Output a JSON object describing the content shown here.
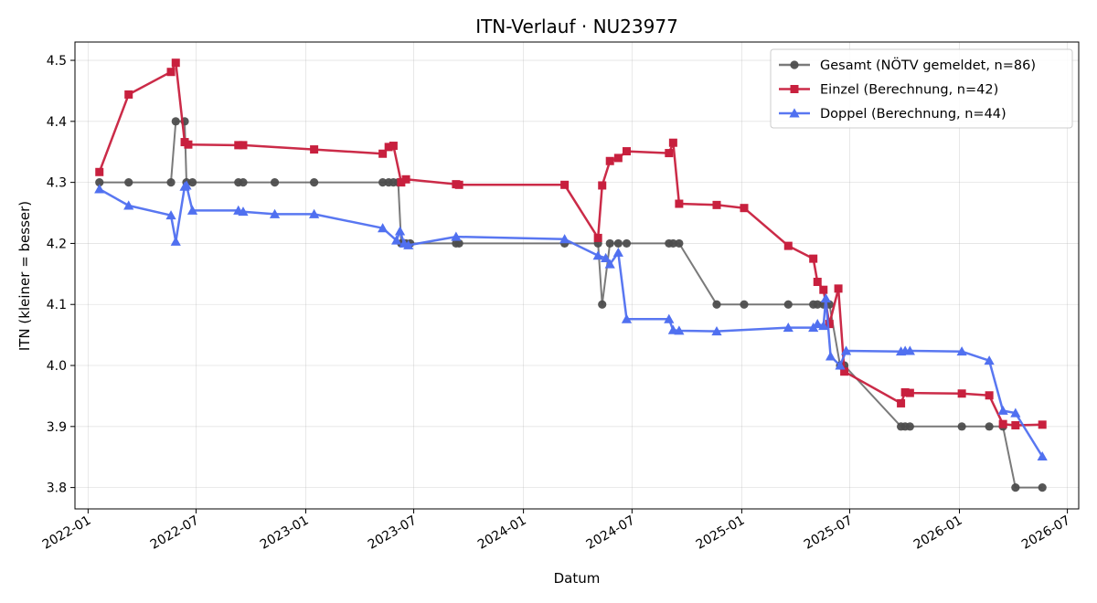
{
  "chart_data": {
    "type": "line",
    "title": "ITN-Verlauf · NU23977",
    "xlabel": "Datum",
    "ylabel": "ITN  (kleiner = besser)",
    "xlim": [
      "2021-12-10",
      "2026-07-20"
    ],
    "ylim": [
      3.765,
      4.53
    ],
    "grid": true,
    "legend_position": "top-right",
    "x_ticks": [
      "2022-01",
      "2022-07",
      "2023-01",
      "2023-07",
      "2024-01",
      "2024-07",
      "2025-01",
      "2025-07",
      "2026-01",
      "2026-07"
    ],
    "y_ticks": [
      "3.8",
      "3.9",
      "4.0",
      "4.1",
      "4.2",
      "4.3",
      "4.4",
      "4.5"
    ],
    "series": [
      {
        "name": "Gesamt (NÖTV gemeldet, n=86)",
        "color": "#4d4d4d",
        "marker": "circle",
        "points": [
          [
            "2022-01-20",
            4.3
          ],
          [
            "2022-03-10",
            4.3
          ],
          [
            "2022-05-20",
            4.3
          ],
          [
            "2022-05-28",
            4.4
          ],
          [
            "2022-06-12",
            4.4
          ],
          [
            "2022-06-15",
            4.3
          ],
          [
            "2022-06-25",
            4.3
          ],
          [
            "2022-09-10",
            4.3
          ],
          [
            "2022-09-18",
            4.3
          ],
          [
            "2022-11-10",
            4.3
          ],
          [
            "2023-01-15",
            4.3
          ],
          [
            "2023-05-10",
            4.3
          ],
          [
            "2023-05-20",
            4.3
          ],
          [
            "2023-05-28",
            4.3
          ],
          [
            "2023-06-05",
            4.3
          ],
          [
            "2023-06-10",
            4.2
          ],
          [
            "2023-06-18",
            4.2
          ],
          [
            "2023-06-25",
            4.2
          ],
          [
            "2023-09-10",
            4.2
          ],
          [
            "2023-09-15",
            4.2
          ],
          [
            "2024-03-10",
            4.2
          ],
          [
            "2024-05-05",
            4.2
          ],
          [
            "2024-05-12",
            4.1
          ],
          [
            "2024-05-25",
            4.2
          ],
          [
            "2024-06-08",
            4.2
          ],
          [
            "2024-06-22",
            4.2
          ],
          [
            "2024-09-01",
            4.2
          ],
          [
            "2024-09-08",
            4.2
          ],
          [
            "2024-09-18",
            4.2
          ],
          [
            "2024-11-20",
            4.1
          ],
          [
            "2025-01-05",
            4.1
          ],
          [
            "2025-03-20",
            4.1
          ],
          [
            "2025-05-01",
            4.1
          ],
          [
            "2025-05-08",
            4.1
          ],
          [
            "2025-05-18",
            4.1
          ],
          [
            "2025-05-28",
            4.1
          ],
          [
            "2025-06-15",
            4.0
          ],
          [
            "2025-06-22",
            4.0
          ],
          [
            "2025-09-25",
            3.9
          ],
          [
            "2025-10-02",
            3.9
          ],
          [
            "2025-10-10",
            3.9
          ],
          [
            "2026-01-05",
            3.9
          ],
          [
            "2026-02-20",
            3.9
          ],
          [
            "2026-03-15",
            3.9
          ],
          [
            "2026-04-05",
            3.8
          ],
          [
            "2026-05-20",
            3.8
          ]
        ]
      },
      {
        "name": "Einzel (Berechnung, n=42)",
        "color": "#c8203e",
        "marker": "square",
        "points": [
          [
            "2022-01-20",
            4.317
          ],
          [
            "2022-03-10",
            4.444
          ],
          [
            "2022-05-20",
            4.481
          ],
          [
            "2022-05-28",
            4.496
          ],
          [
            "2022-06-12",
            4.366
          ],
          [
            "2022-06-18",
            4.362
          ],
          [
            "2022-09-10",
            4.361
          ],
          [
            "2022-09-18",
            4.361
          ],
          [
            "2023-01-15",
            4.354
          ],
          [
            "2023-05-10",
            4.347
          ],
          [
            "2023-05-20",
            4.358
          ],
          [
            "2023-05-28",
            4.36
          ],
          [
            "2023-06-10",
            4.3
          ],
          [
            "2023-06-18",
            4.305
          ],
          [
            "2023-09-10",
            4.297
          ],
          [
            "2023-09-15",
            4.296
          ],
          [
            "2024-03-10",
            4.296
          ],
          [
            "2024-05-05",
            4.209
          ],
          [
            "2024-05-12",
            4.295
          ],
          [
            "2024-05-25",
            4.335
          ],
          [
            "2024-06-08",
            4.34
          ],
          [
            "2024-06-22",
            4.351
          ],
          [
            "2024-09-01",
            4.348
          ],
          [
            "2024-09-08",
            4.365
          ],
          [
            "2024-09-18",
            4.265
          ],
          [
            "2024-11-20",
            4.263
          ],
          [
            "2025-01-05",
            4.258
          ],
          [
            "2025-03-20",
            4.196
          ],
          [
            "2025-05-01",
            4.175
          ],
          [
            "2025-05-08",
            4.137
          ],
          [
            "2025-05-18",
            4.124
          ],
          [
            "2025-05-28",
            4.068
          ],
          [
            "2025-06-12",
            4.126
          ],
          [
            "2025-06-22",
            3.99
          ],
          [
            "2025-09-25",
            3.938
          ],
          [
            "2025-10-02",
            3.956
          ],
          [
            "2025-10-10",
            3.955
          ],
          [
            "2026-01-05",
            3.954
          ],
          [
            "2026-02-20",
            3.951
          ],
          [
            "2026-03-15",
            3.904
          ],
          [
            "2026-04-05",
            3.902
          ],
          [
            "2026-05-20",
            3.903
          ]
        ]
      },
      {
        "name": "Doppel (Berechnung, n=44)",
        "color": "#5070f0",
        "marker": "triangle",
        "points": [
          [
            "2022-01-20",
            4.289
          ],
          [
            "2022-03-10",
            4.262
          ],
          [
            "2022-05-20",
            4.246
          ],
          [
            "2022-05-28",
            4.203
          ],
          [
            "2022-06-12",
            4.293
          ],
          [
            "2022-06-15",
            4.295
          ],
          [
            "2022-06-25",
            4.254
          ],
          [
            "2022-09-10",
            4.254
          ],
          [
            "2022-09-18",
            4.252
          ],
          [
            "2022-11-10",
            4.248
          ],
          [
            "2023-01-15",
            4.248
          ],
          [
            "2023-05-10",
            4.225
          ],
          [
            "2023-06-02",
            4.205
          ],
          [
            "2023-06-08",
            4.22
          ],
          [
            "2023-06-15",
            4.2
          ],
          [
            "2023-06-22",
            4.197
          ],
          [
            "2023-09-10",
            4.211
          ],
          [
            "2024-03-10",
            4.207
          ],
          [
            "2024-05-05",
            4.18
          ],
          [
            "2024-05-18",
            4.176
          ],
          [
            "2024-05-25",
            4.166
          ],
          [
            "2024-06-08",
            4.185
          ],
          [
            "2024-06-22",
            4.076
          ],
          [
            "2024-09-01",
            4.076
          ],
          [
            "2024-09-08",
            4.058
          ],
          [
            "2024-09-18",
            4.057
          ],
          [
            "2024-11-20",
            4.056
          ],
          [
            "2025-03-20",
            4.062
          ],
          [
            "2025-05-01",
            4.062
          ],
          [
            "2025-05-08",
            4.068
          ],
          [
            "2025-05-18",
            4.065
          ],
          [
            "2025-05-22",
            4.11
          ],
          [
            "2025-05-30",
            4.015
          ],
          [
            "2025-06-15",
            4.0
          ],
          [
            "2025-06-25",
            4.024
          ],
          [
            "2025-09-25",
            4.023
          ],
          [
            "2025-10-02",
            4.024
          ],
          [
            "2025-10-10",
            4.024
          ],
          [
            "2026-01-05",
            4.023
          ],
          [
            "2026-02-20",
            4.008
          ],
          [
            "2026-03-15",
            3.926
          ],
          [
            "2026-04-05",
            3.922
          ],
          [
            "2026-05-20",
            3.851
          ]
        ]
      }
    ]
  }
}
